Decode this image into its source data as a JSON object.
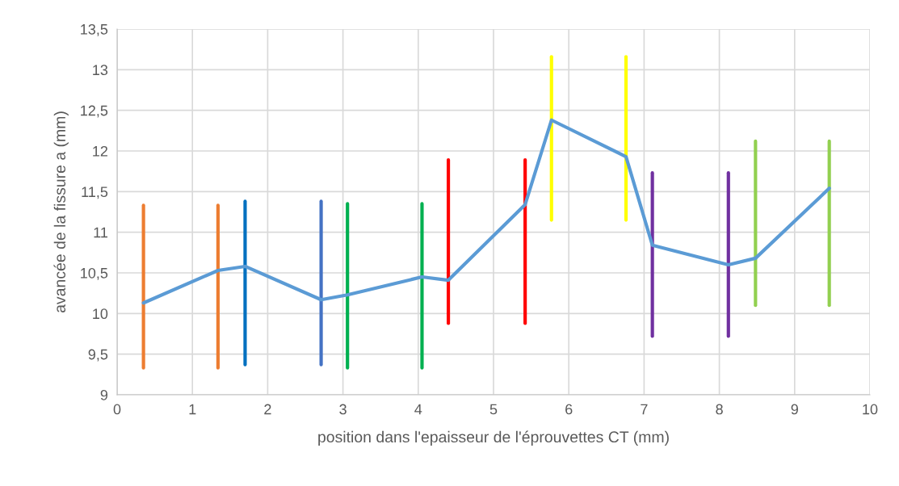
{
  "chart_data": {
    "type": "line",
    "xlabel": "position dans l'epaisseur de l'éprouvettes CT (mm)",
    "ylabel": "avancée de la fissure a (mm)",
    "xlim": [
      0,
      10
    ],
    "xticks": [
      0,
      1,
      2,
      3,
      4,
      5,
      6,
      7,
      8,
      9,
      10
    ],
    "ylim": [
      9,
      13.5
    ],
    "yticks": [
      {
        "value": 9,
        "label": "9"
      },
      {
        "value": 9.5,
        "label": "9,5"
      },
      {
        "value": 10,
        "label": "10"
      },
      {
        "value": 10.5,
        "label": "10,5"
      },
      {
        "value": 11,
        "label": "11"
      },
      {
        "value": 11.5,
        "label": "11,5"
      },
      {
        "value": 12,
        "label": "12"
      },
      {
        "value": 12.5,
        "label": "12,5"
      },
      {
        "value": 13,
        "label": "13"
      },
      {
        "value": 13.5,
        "label": "13,5"
      }
    ],
    "grid": true,
    "series": [
      {
        "color": "#ed7d31",
        "x": [
          0.35,
          0.35
        ],
        "values": [
          9.33,
          11.33
        ]
      },
      {
        "color": "#ed7d31",
        "x": [
          1.34,
          1.34
        ],
        "values": [
          9.33,
          11.33
        ]
      },
      {
        "color": "#0070c0",
        "x": [
          1.7,
          1.7
        ],
        "values": [
          9.37,
          11.38
        ]
      },
      {
        "color": "#4472c4",
        "x": [
          2.71,
          2.71
        ],
        "values": [
          9.37,
          11.38
        ]
      },
      {
        "color": "#00b050",
        "x": [
          3.06,
          3.06
        ],
        "values": [
          9.33,
          11.35
        ]
      },
      {
        "color": "#00b050",
        "x": [
          4.05,
          4.05
        ],
        "values": [
          9.33,
          11.35
        ]
      },
      {
        "color": "#ff0000",
        "x": [
          4.4,
          4.4
        ],
        "values": [
          9.88,
          11.89
        ]
      },
      {
        "color": "#ff0000",
        "x": [
          5.42,
          5.42
        ],
        "values": [
          9.88,
          11.89
        ]
      },
      {
        "color": "#ffff00",
        "x": [
          5.77,
          5.77
        ],
        "values": [
          11.15,
          13.16
        ]
      },
      {
        "color": "#ffff00",
        "x": [
          6.76,
          6.76
        ],
        "values": [
          11.15,
          13.16
        ]
      },
      {
        "color": "#7030a0",
        "x": [
          7.11,
          7.11
        ],
        "values": [
          9.72,
          11.73
        ]
      },
      {
        "color": "#7030a0",
        "x": [
          8.12,
          8.12
        ],
        "values": [
          9.72,
          11.73
        ]
      },
      {
        "color": "#92d050",
        "x": [
          8.48,
          8.48
        ],
        "values": [
          10.1,
          12.12
        ]
      },
      {
        "color": "#92d050",
        "x": [
          9.46,
          9.46
        ],
        "values": [
          10.1,
          12.12
        ]
      },
      {
        "color": "#5b9bd5",
        "x": [
          0.35,
          1.34,
          1.7,
          2.71,
          3.06,
          4.05,
          4.4,
          5.42,
          5.77,
          6.76,
          7.11,
          8.12,
          8.48,
          9.46
        ],
        "values": [
          10.13,
          10.53,
          10.58,
          10.17,
          10.23,
          10.45,
          10.41,
          11.34,
          12.38,
          11.93,
          10.84,
          10.6,
          10.68,
          11.54
        ]
      }
    ]
  }
}
